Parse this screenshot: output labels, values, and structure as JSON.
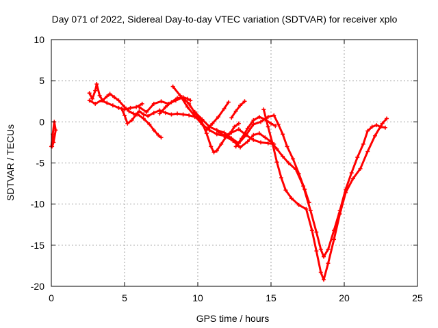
{
  "chart_data": {
    "type": "line",
    "title": "Day 071 of 2022, Sidereal Day-to-day VTEC variation (SDTVAR) for receiver xplo",
    "xlabel": "GPS time / hours",
    "ylabel": "SDTVAR / TECUs",
    "xlim": [
      0,
      25
    ],
    "ylim": [
      -20,
      10
    ],
    "xticks": [
      0,
      5,
      10,
      15,
      20,
      25
    ],
    "yticks": [
      -20,
      -15,
      -10,
      -5,
      0,
      5,
      10
    ],
    "grid": true,
    "legend": "none",
    "colors": {
      "series": "#ff0000",
      "axis": "#000000",
      "grid": "#a0a0a0"
    },
    "series": [
      {
        "name": "arc-1",
        "x": [
          0.0,
          0.1,
          0.2,
          0.3,
          0.15,
          0.05
        ],
        "y": [
          -3.0,
          -1.5,
          0.0,
          -1.0,
          -2.5,
          -3.0
        ]
      },
      {
        "name": "arc-2",
        "x": [
          2.6,
          2.8,
          3.0,
          3.1,
          3.3,
          3.5,
          3.8,
          4.0,
          4.3,
          4.6,
          5.0,
          5.3,
          5.6,
          5.9,
          6.3,
          6.7,
          7.0,
          7.3,
          7.5
        ],
        "y": [
          3.5,
          2.8,
          3.8,
          4.6,
          3.2,
          2.6,
          3.1,
          3.4,
          3.0,
          2.6,
          1.8,
          1.3,
          1.0,
          0.9,
          0.4,
          -0.3,
          -1.0,
          -1.6,
          -1.9
        ]
      },
      {
        "name": "arc-3",
        "x": [
          2.6,
          3.0,
          3.4,
          3.8,
          4.2,
          4.6,
          5.0,
          5.4,
          5.8,
          6.2
        ],
        "y": [
          2.6,
          2.2,
          2.6,
          2.3,
          2.0,
          1.7,
          1.5,
          1.7,
          1.8,
          2.2
        ]
      },
      {
        "name": "arc-4",
        "x": [
          4.8,
          5.0,
          5.2,
          5.5,
          5.8,
          6.0,
          6.3,
          6.6,
          7.0,
          7.4,
          7.8,
          8.2,
          8.6,
          9.0,
          9.4,
          9.8,
          10.2
        ],
        "y": [
          1.6,
          0.8,
          -0.2,
          0.2,
          0.9,
          1.3,
          0.9,
          0.7,
          1.1,
          1.4,
          1.1,
          0.9,
          1.0,
          0.9,
          0.8,
          0.6,
          0.4
        ]
      },
      {
        "name": "arc-5",
        "x": [
          6.0,
          6.5,
          7.0,
          7.5,
          8.0,
          8.5,
          9.0,
          9.3,
          9.5
        ],
        "y": [
          1.8,
          1.2,
          2.2,
          2.5,
          2.2,
          2.6,
          3.0,
          2.8,
          2.6
        ]
      },
      {
        "name": "arc-6",
        "x": [
          7.4,
          7.8,
          8.2,
          8.6,
          9.0,
          9.4,
          9.8,
          10.2,
          10.6,
          10.9,
          11.1,
          11.3,
          11.6,
          11.9,
          12.2,
          12.5,
          12.8
        ],
        "y": [
          1.0,
          1.8,
          2.4,
          2.9,
          2.9,
          2.2,
          1.1,
          0.3,
          -1.4,
          -3.0,
          -3.7,
          -3.5,
          -2.7,
          -1.9,
          -1.4,
          -0.6,
          -0.2
        ]
      },
      {
        "name": "arc-7",
        "x": [
          8.3,
          8.8,
          9.3,
          9.8,
          10.3,
          10.8,
          11.3,
          11.8,
          12.3,
          12.8,
          13.3,
          13.8,
          14.3,
          14.8,
          15.2
        ],
        "y": [
          4.3,
          3.2,
          1.8,
          0.7,
          -0.3,
          -1.0,
          -1.5,
          -1.7,
          -1.3,
          -0.9,
          -1.6,
          -2.2,
          -2.5,
          -2.6,
          -2.7
        ]
      },
      {
        "name": "arc-8",
        "x": [
          9.8,
          10.3,
          10.8,
          11.3,
          11.8,
          12.3,
          12.8,
          13.3,
          13.8,
          14.3,
          14.8,
          15.2,
          15.5,
          15.8,
          16.1,
          16.5,
          16.9,
          17.3,
          17.6
        ],
        "y": [
          1.2,
          0.3,
          -0.6,
          -1.0,
          -1.3,
          -2.0,
          -2.6,
          -1.6,
          -0.3,
          0.0,
          0.6,
          0.8,
          -0.3,
          -1.5,
          -3.0,
          -4.5,
          -6.3,
          -8.2,
          -9.8
        ]
      },
      {
        "name": "arc-9",
        "x": [
          10.6,
          11.0,
          11.4,
          11.8,
          12.1
        ],
        "y": [
          -1.0,
          -0.2,
          0.6,
          1.6,
          2.4
        ]
      },
      {
        "name": "arc-10",
        "x": [
          11.4,
          11.9,
          12.4,
          12.9,
          13.4,
          13.8,
          14.2,
          14.6,
          15.0,
          15.4,
          15.8,
          16.2,
          16.7,
          17.2,
          17.7,
          18.1,
          18.4,
          18.6,
          18.9,
          19.3,
          19.7,
          20.1,
          20.5,
          20.9,
          21.3,
          21.6,
          21.9,
          22.2,
          22.5,
          22.8
        ],
        "y": [
          -1.2,
          -1.8,
          -2.3,
          -3.1,
          -2.4,
          -1.6,
          -1.4,
          -1.9,
          -2.4,
          -3.3,
          -4.2,
          -5.0,
          -5.8,
          -7.8,
          -10.8,
          -13.4,
          -15.5,
          -16.4,
          -15.5,
          -13.2,
          -10.8,
          -8.2,
          -6.2,
          -4.3,
          -2.7,
          -1.1,
          -0.6,
          -0.4,
          -0.6,
          -0.7
        ]
      },
      {
        "name": "arc-11",
        "x": [
          12.6,
          13.0,
          13.4,
          13.8,
          14.2,
          14.6,
          15.0,
          15.3
        ],
        "y": [
          -3.0,
          -2.0,
          -0.8,
          0.2,
          0.6,
          0.3,
          -0.2,
          -0.5
        ]
      },
      {
        "name": "arc-12",
        "x": [
          12.3,
          12.6,
          12.9,
          13.2
        ],
        "y": [
          0.5,
          1.3,
          2.0,
          2.5
        ]
      },
      {
        "name": "arc-13",
        "x": [
          14.5,
          14.8,
          15.1,
          15.4,
          15.7,
          16.0,
          16.4,
          16.9,
          17.4,
          17.8,
          18.1,
          18.4,
          18.6,
          18.9,
          19.3,
          19.7,
          20.1,
          20.6,
          21.1,
          21.6,
          22.1,
          22.6,
          22.9
        ],
        "y": [
          1.5,
          -0.6,
          -2.6,
          -4.9,
          -6.8,
          -8.3,
          -9.3,
          -10.1,
          -10.6,
          -13.2,
          -15.7,
          -18.3,
          -19.2,
          -17.2,
          -14.3,
          -11.2,
          -8.6,
          -6.9,
          -5.7,
          -3.6,
          -1.7,
          -0.2,
          0.4
        ]
      }
    ]
  }
}
